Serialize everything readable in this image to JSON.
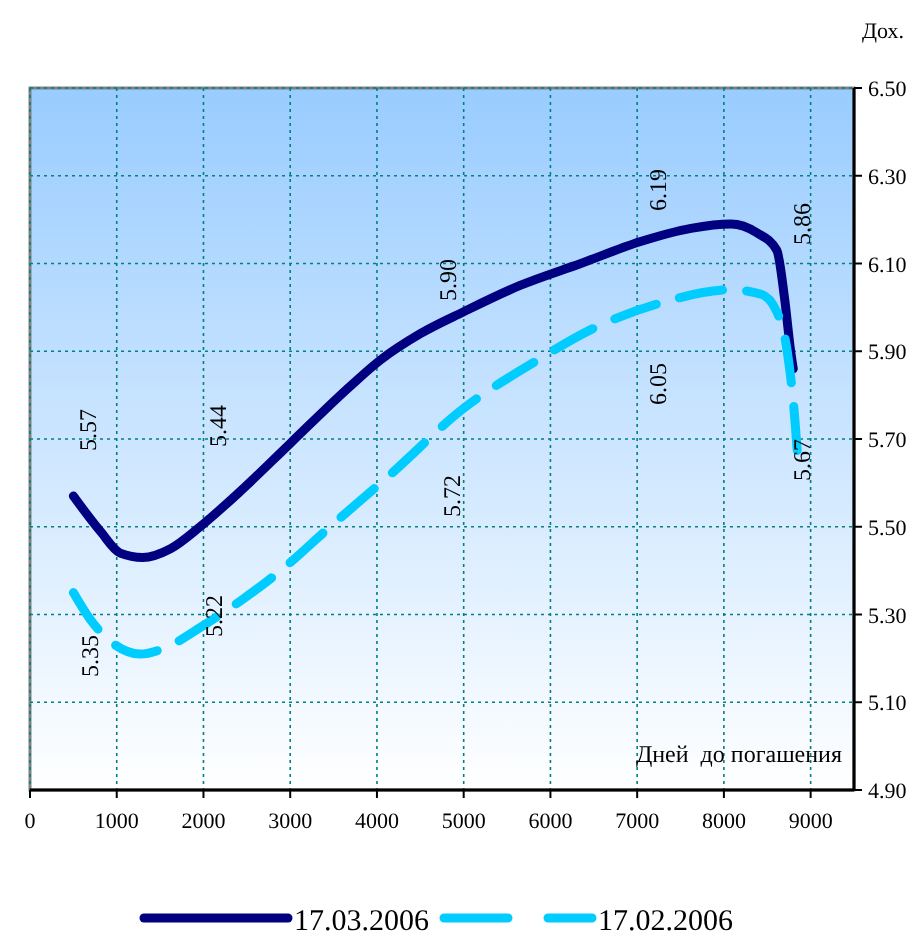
{
  "chart_data": {
    "type": "line",
    "xlabel": "Дней  до погашения",
    "ylabel": "Дох.",
    "xlim": [
      0,
      9500
    ],
    "ylim": [
      4.9,
      6.5
    ],
    "xticks": [
      0,
      1000,
      2000,
      3000,
      4000,
      5000,
      6000,
      7000,
      8000,
      9000
    ],
    "yticks": [
      {
        "value": 4.9,
        "label": "4.90"
      },
      {
        "value": 5.1,
        "label": "5.10"
      },
      {
        "value": 5.3,
        "label": "5.30"
      },
      {
        "value": 5.5,
        "label": "5.50"
      },
      {
        "value": 5.7,
        "label": "5.70"
      },
      {
        "value": 5.9,
        "label": "5.90"
      },
      {
        "value": 6.1,
        "label": "6.10"
      },
      {
        "value": 6.3,
        "label": "6.30"
      },
      {
        "value": 6.5,
        "label": "6.50"
      }
    ],
    "grid": true,
    "legend": "bottom",
    "marker": "none",
    "series": [
      {
        "name": "17.03.2006",
        "color": "#000080",
        "line_style": "solid",
        "x": [
          500,
          810,
          1040,
          1300,
          1620,
          1960,
          2420,
          3000,
          3690,
          4040,
          4500,
          5000,
          5650,
          6350,
          7040,
          7620,
          8080,
          8380,
          8610,
          8700,
          8770,
          8800
        ],
        "values": [
          5.57,
          5.49,
          5.44,
          5.43,
          5.45,
          5.5,
          5.58,
          5.69,
          5.82,
          5.88,
          5.94,
          5.99,
          6.05,
          6.1,
          6.15,
          6.18,
          6.19,
          6.17,
          6.13,
          6.02,
          5.9,
          5.86
        ]
      },
      {
        "name": "17.02.2006",
        "color": "#00ccff",
        "line_style": "dashed",
        "x": [
          500,
          690,
          920,
          1270,
          1620,
          1960,
          2420,
          2890,
          3460,
          4160,
          5000,
          5770,
          6580,
          7270,
          8080,
          8430,
          8610,
          8730,
          8820,
          8850
        ],
        "values": [
          5.35,
          5.29,
          5.24,
          5.21,
          5.23,
          5.27,
          5.33,
          5.4,
          5.5,
          5.62,
          5.77,
          5.87,
          5.96,
          6.01,
          6.04,
          6.03,
          5.99,
          5.9,
          5.74,
          5.66
        ]
      }
    ],
    "annotations": [
      "5.57",
      "5.44",
      "5.90",
      "6.19",
      "5.86",
      "5.35",
      "5.22",
      "5.72",
      "6.05",
      "5.67"
    ]
  }
}
